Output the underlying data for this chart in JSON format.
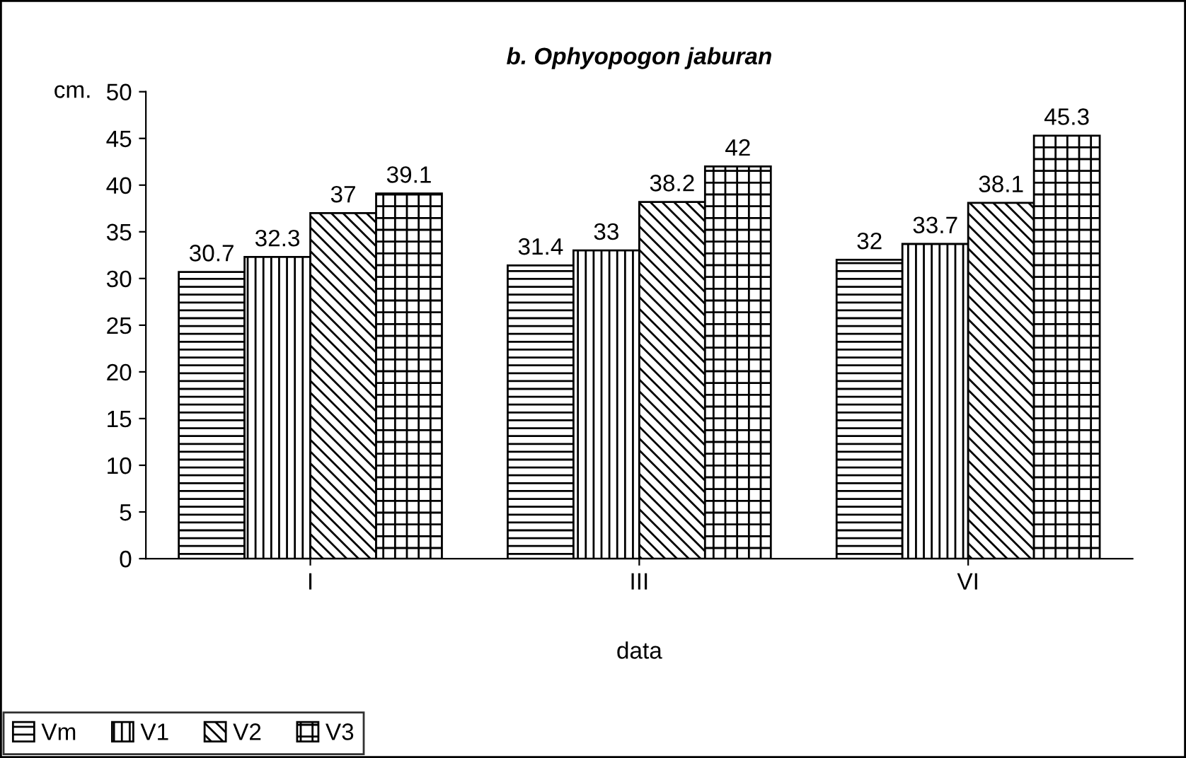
{
  "chart_data": {
    "type": "bar",
    "title": "b. Ophyopogon jaburan",
    "xlabel": "data",
    "ylabel": "cm.",
    "categories": [
      "I",
      "III",
      "VI"
    ],
    "series": [
      {
        "name": "Vm",
        "color": "#000000",
        "values": [
          30.7,
          31.4,
          32
        ]
      },
      {
        "name": "V1",
        "color": "#000000",
        "values": [
          32.3,
          33,
          33.7
        ]
      },
      {
        "name": "V2",
        "color": "#000000",
        "values": [
          37,
          38.2,
          38.1
        ]
      },
      {
        "name": "V3",
        "color": "#000000",
        "values": [
          39.1,
          42,
          45.3
        ]
      }
    ],
    "ylim": [
      0,
      50
    ],
    "yticks": [
      0,
      5,
      10,
      15,
      20,
      25,
      30,
      35,
      40,
      45,
      50
    ],
    "data_labels": true,
    "grid": false,
    "legend": "bottom left"
  }
}
